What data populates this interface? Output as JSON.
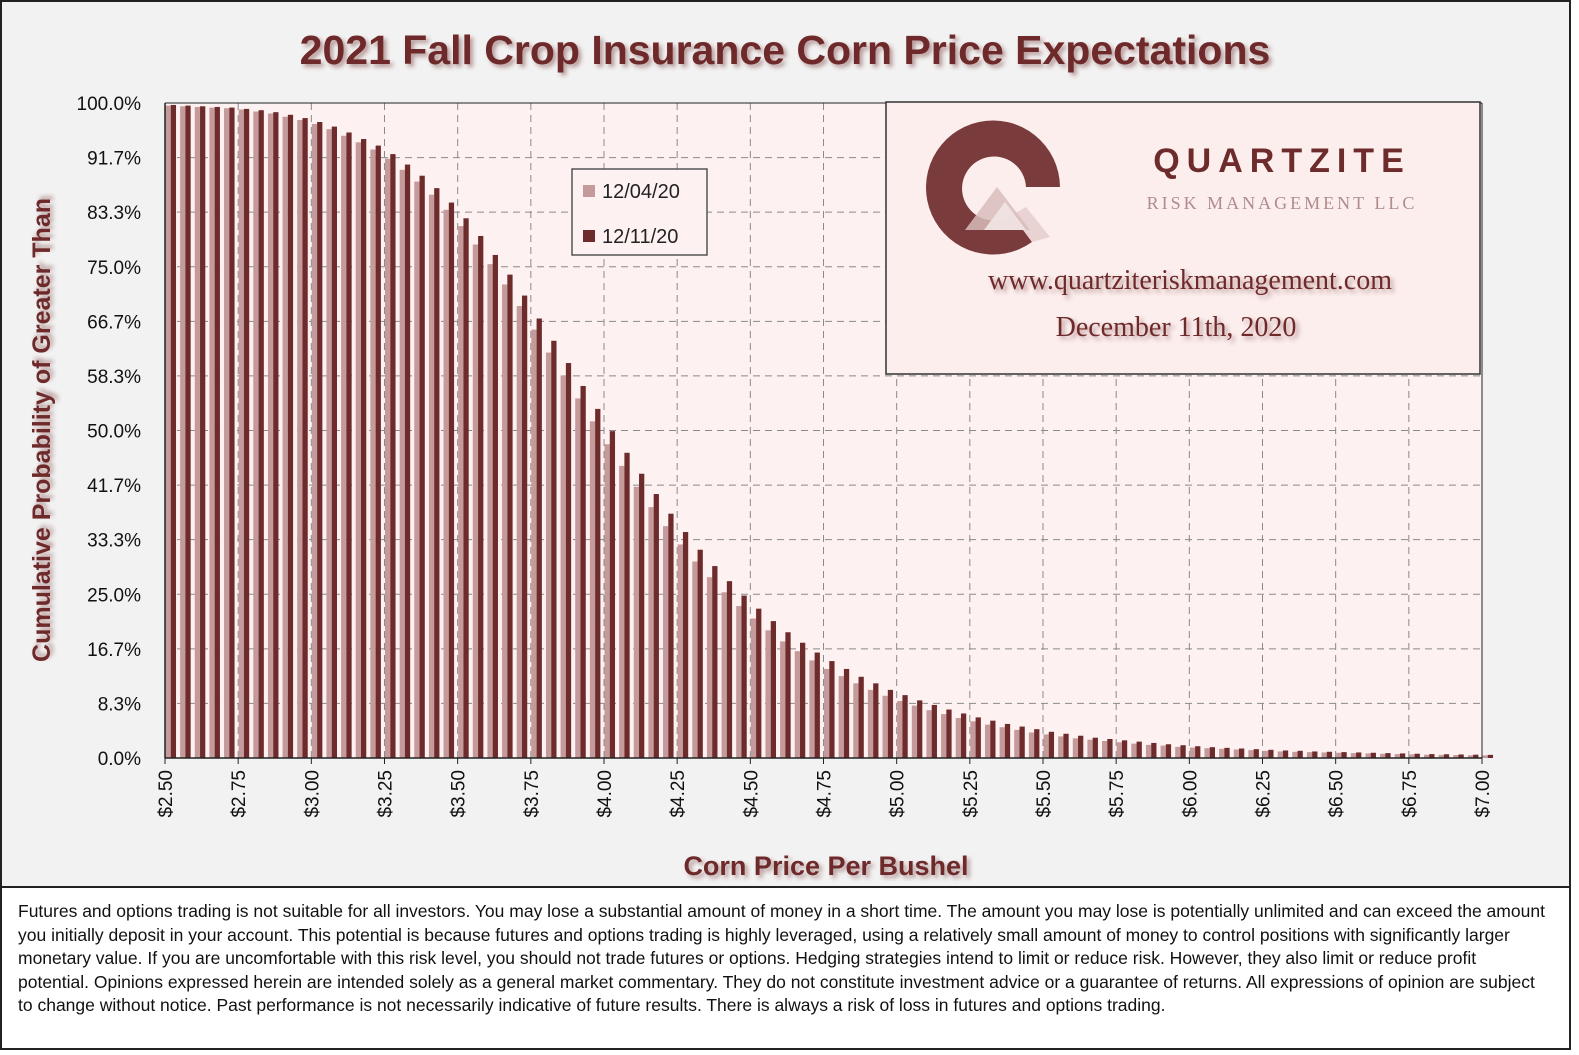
{
  "chart_data": {
    "type": "bar",
    "title": "2021 Fall Crop Insurance Corn Price Expectations",
    "xlabel": "Corn Price Per Bushel",
    "ylabel": "Cumulative Probability of Greater Than",
    "ylim": [
      0,
      100
    ],
    "y_ticks": [
      "0.0%",
      "8.3%",
      "16.7%",
      "25.0%",
      "33.3%",
      "41.7%",
      "50.0%",
      "58.3%",
      "66.7%",
      "75.0%",
      "83.3%",
      "91.7%",
      "100.0%"
    ],
    "x_ticks": [
      "$2.50",
      "$2.75",
      "$3.00",
      "$3.25",
      "$3.50",
      "$3.75",
      "$4.00",
      "$4.25",
      "$4.50",
      "$4.75",
      "$5.00",
      "$5.25",
      "$5.50",
      "$5.75",
      "$6.00",
      "$6.25",
      "$6.50",
      "$6.75",
      "$7.00"
    ],
    "price_start": 2.5,
    "price_end": 7.0,
    "price_step": 0.05,
    "legend": {
      "placement": "top-center"
    },
    "series": [
      {
        "name": "12/04/20",
        "color": "#c49a9a",
        "values": [
          99.6,
          99.5,
          99.4,
          99.3,
          99.2,
          99.0,
          98.7,
          98.4,
          97.9,
          97.4,
          96.8,
          96.0,
          95.0,
          94.0,
          92.9,
          91.5,
          89.8,
          88.0,
          86.0,
          83.7,
          81.2,
          78.4,
          75.4,
          72.3,
          69.0,
          65.4,
          61.9,
          58.4,
          54.9,
          51.4,
          47.9,
          44.6,
          41.4,
          38.3,
          35.4,
          32.6,
          30.0,
          27.6,
          25.3,
          23.2,
          21.3,
          19.5,
          17.8,
          16.3,
          14.9,
          13.6,
          12.5,
          11.4,
          10.4,
          9.5,
          8.7,
          8.0,
          7.3,
          6.7,
          6.1,
          5.6,
          5.1,
          4.7,
          4.3,
          3.9,
          3.6,
          3.3,
          3.0,
          2.8,
          2.6,
          2.4,
          2.2,
          2.0,
          1.9,
          1.7,
          1.6,
          1.5,
          1.4,
          1.3,
          1.2,
          1.1,
          1.0,
          0.95,
          0.9,
          0.85,
          0.8,
          0.75,
          0.7,
          0.65,
          0.6,
          0.55,
          0.5,
          0.48,
          0.45,
          0.42,
          0.4
        ]
      },
      {
        "name": "12/11/20",
        "color": "#7a3838",
        "values": [
          99.7,
          99.6,
          99.5,
          99.4,
          99.3,
          99.1,
          98.9,
          98.6,
          98.2,
          97.7,
          97.1,
          96.4,
          95.5,
          94.5,
          93.5,
          92.2,
          90.6,
          88.9,
          87.0,
          84.8,
          82.4,
          79.7,
          76.8,
          73.8,
          70.6,
          67.1,
          63.7,
          60.3,
          56.8,
          53.3,
          49.9,
          46.6,
          43.4,
          40.3,
          37.3,
          34.5,
          31.8,
          29.3,
          27.0,
          24.8,
          22.8,
          20.9,
          19.2,
          17.6,
          16.1,
          14.8,
          13.6,
          12.4,
          11.4,
          10.4,
          9.6,
          8.8,
          8.1,
          7.4,
          6.8,
          6.2,
          5.7,
          5.2,
          4.8,
          4.4,
          4.0,
          3.7,
          3.4,
          3.1,
          2.9,
          2.7,
          2.5,
          2.3,
          2.1,
          1.95,
          1.8,
          1.65,
          1.55,
          1.45,
          1.35,
          1.25,
          1.15,
          1.1,
          1.0,
          0.95,
          0.9,
          0.85,
          0.8,
          0.75,
          0.7,
          0.65,
          0.6,
          0.57,
          0.54,
          0.51,
          0.48
        ]
      }
    ]
  },
  "logo": {
    "brand": "QUARTZITE",
    "subtitle": "RISK MANAGEMENT LLC",
    "website": "www.quartziteriskmanagement.com",
    "date": "December 11th, 2020"
  },
  "disclaimer": "Futures and options trading is not suitable for all investors. You may lose a substantial amount of money in a short time. The amount you may lose is potentially unlimited and can exceed the amount you initially deposit in your account. This potential is because futures and options trading is highly leveraged, using a relatively small amount of money to control positions with significantly larger monetary value. If you are uncomfortable with this risk level, you should not trade futures or options. Hedging strategies intend to limit or reduce risk. However, they also limit or reduce profit potential. Opinions expressed herein are intended solely as a general market commentary. They do not constitute investment advice or a guarantee of returns. All expressions of opinion are subject to change without notice. Past performance is not necessarily indicative of future results. There is always a risk of loss in futures and options trading.",
  "colors": {
    "title": "#6e2b2b",
    "plot_bg": "#fdf2f1",
    "grid": "#8a8a8a",
    "panel_bg": "#fbeeed"
  }
}
